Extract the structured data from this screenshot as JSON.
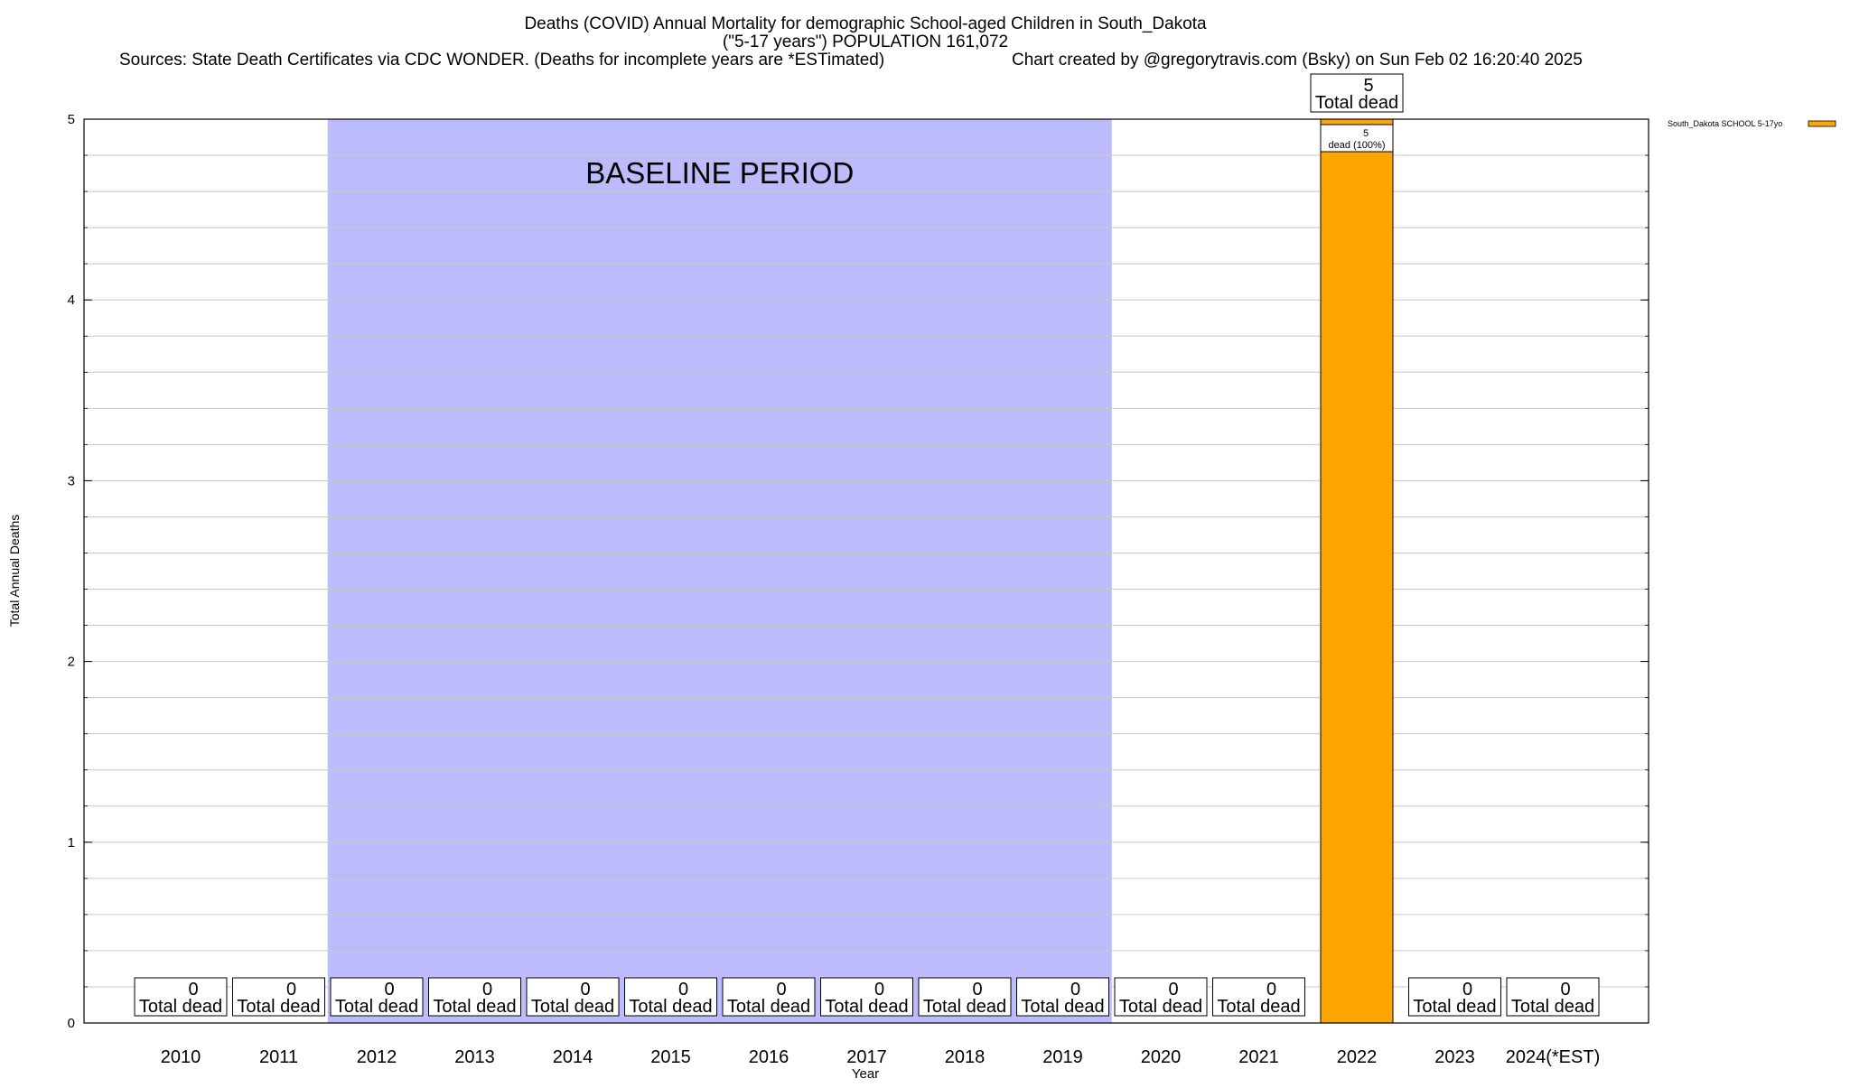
{
  "title": {
    "line1": "Deaths (COVID) Annual Mortality for demographic School-aged Children in South_Dakota",
    "line2": "(\"5-17 years\") POPULATION 161,072",
    "sources": "Sources: State Death Certificates via CDC WONDER. (Deaths for incomplete years are *ESTimated)",
    "credit": "Chart created by @gregorytravis.com (Bsky) on Sun Feb 02 16:20:40 2025"
  },
  "baseline_label": "BASELINE PERIOD",
  "total_dead_label": "Total dead",
  "colors": {
    "bar": "#ffa500",
    "baseline": "#bcbcfc",
    "grid": "#c8c8c8"
  },
  "chart_data": {
    "type": "bar",
    "xlabel": "Year",
    "ylabel": "Total Annual Deaths",
    "ylim": [
      0,
      5
    ],
    "yticks": [
      0,
      1,
      2,
      3,
      4,
      5
    ],
    "categories": [
      "2010",
      "2011",
      "2012",
      "2013",
      "2014",
      "2015",
      "2016",
      "2017",
      "2018",
      "2019",
      "2020",
      "2021",
      "2022",
      "2023",
      "2024(*EST)"
    ],
    "series": [
      {
        "name": "South_Dakota SCHOOL 5-17yo",
        "values": [
          0,
          0,
          0,
          0,
          0,
          0,
          0,
          0,
          0,
          0,
          0,
          0,
          5,
          0,
          0
        ]
      }
    ],
    "totals": [
      0,
      0,
      0,
      0,
      0,
      0,
      0,
      0,
      0,
      0,
      0,
      0,
      5,
      0,
      0
    ],
    "segment_labels": [
      {
        "category": "2022",
        "count": "5",
        "text": "dead (100%)"
      }
    ],
    "baseline_period": {
      "from": "2012",
      "to": "2019"
    },
    "grid": true,
    "legend_position": "top-right"
  }
}
